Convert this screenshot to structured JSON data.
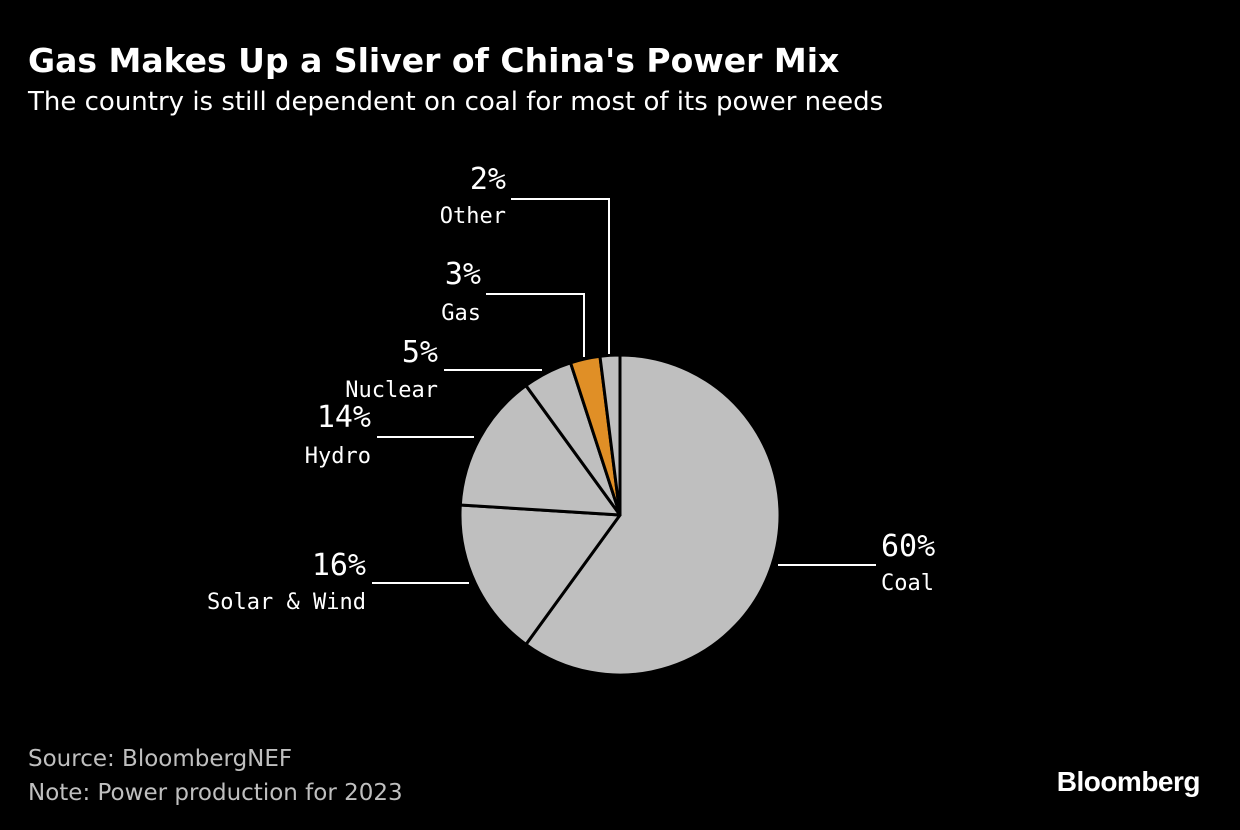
{
  "header": {
    "title": "Gas Makes Up a Sliver of China's Power Mix",
    "subtitle": "The country is still dependent on coal for most of its power needs"
  },
  "footer": {
    "source": "Source: BloombergNEF",
    "note": "Note: Power production for 2023"
  },
  "branding": {
    "logo": "Bloomberg"
  },
  "colors": {
    "background": "#000000",
    "slice_default": "#bfbfbf",
    "slice_highlight": "#e08f26",
    "slice_stroke": "#000000",
    "leader_line": "#ffffff",
    "text": "#ffffff",
    "footer_text": "#bfbfbf"
  },
  "chart_data": {
    "type": "pie",
    "title": "Gas Makes Up a Sliver of China's Power Mix",
    "subtitle": "The country is still dependent on coal for most of its power needs",
    "start": "12 o'clock",
    "direction": "clockwise",
    "slices": [
      {
        "label": "Coal",
        "value": 60,
        "value_label": "60%",
        "highlight": false
      },
      {
        "label": "Solar & Wind",
        "value": 16,
        "value_label": "16%",
        "highlight": false
      },
      {
        "label": "Hydro",
        "value": 14,
        "value_label": "14%",
        "highlight": false
      },
      {
        "label": "Nuclear",
        "value": 5,
        "value_label": "5%",
        "highlight": false
      },
      {
        "label": "Gas",
        "value": 3,
        "value_label": "3%",
        "highlight": true
      },
      {
        "label": "Other",
        "value": 2,
        "value_label": "2%",
        "highlight": false
      }
    ]
  }
}
